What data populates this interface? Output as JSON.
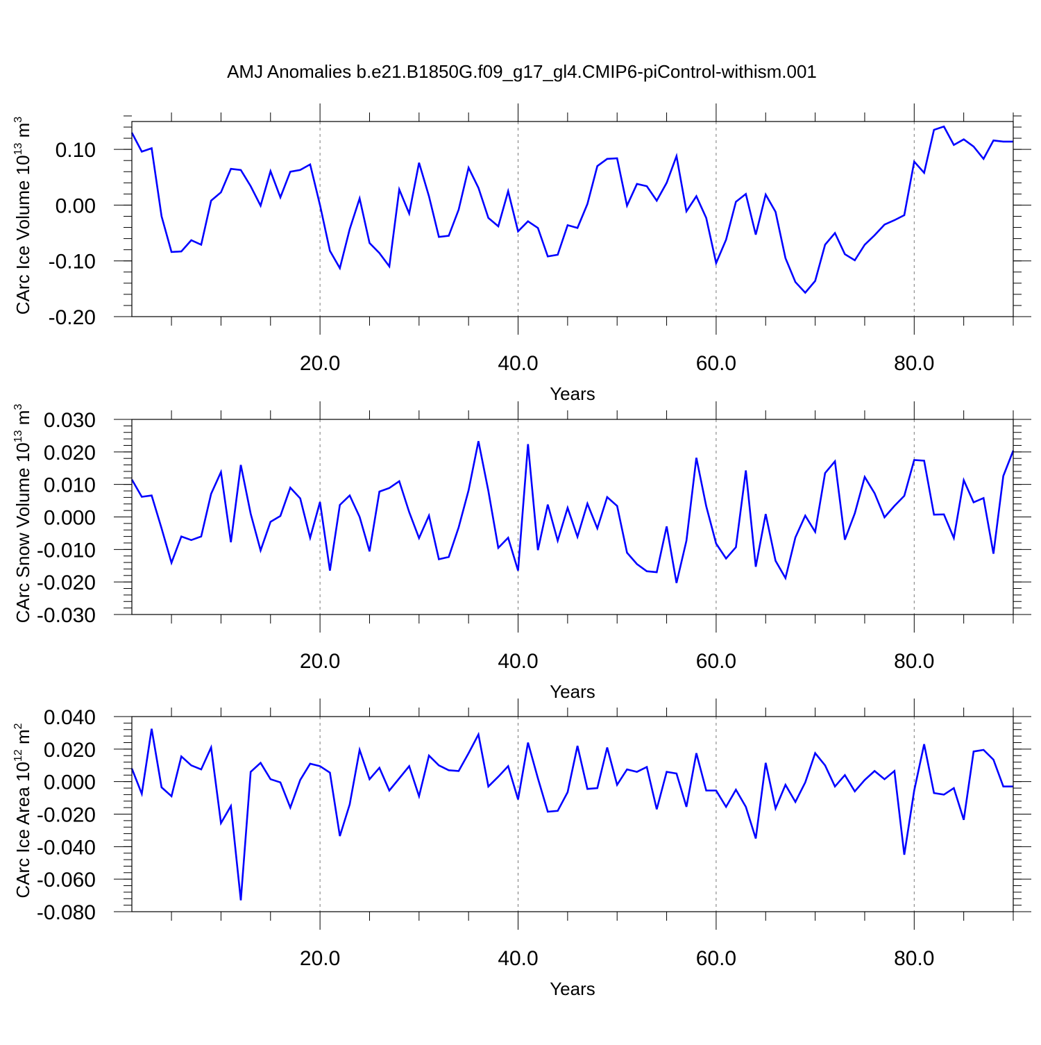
{
  "chart_data": {
    "title": "AMJ Anomalies b.e21.B1850G.f09_g17_gl4.CMIP6-piControl-withism.001",
    "panels": [
      {
        "type": "line",
        "ylabel": "CArc Ice Volume 10",
        "ylabel_exp": "13",
        "ylabel_unit": " m",
        "ylabel_unit_exp": "3",
        "xlabel": "Years",
        "xlim": [
          1,
          90
        ],
        "ylim": [
          -0.2,
          0.15
        ],
        "xticks": [
          20,
          40,
          60,
          80
        ],
        "xtick_labels": [
          "20.0",
          "40.0",
          "60.0",
          "80.0"
        ],
        "yticks": [
          -0.2,
          -0.1,
          0.0,
          0.1
        ],
        "ytick_labels": [
          "-0.20",
          "-0.10",
          "0.00",
          "0.10"
        ],
        "yminor": 0.02,
        "grid_x": true,
        "color": "#0000ff",
        "values": [
          0.13,
          0.096,
          0.102,
          -0.02,
          -0.084,
          -0.083,
          -0.063,
          -0.071,
          0.008,
          0.023,
          0.065,
          0.063,
          0.034,
          -0.001,
          0.061,
          0.014,
          0.06,
          0.063,
          0.073,
          0.0,
          -0.082,
          -0.113,
          -0.043,
          0.012,
          -0.068,
          -0.086,
          -0.11,
          0.028,
          -0.015,
          0.076,
          0.016,
          -0.057,
          -0.055,
          -0.008,
          0.067,
          0.031,
          -0.023,
          -0.038,
          0.025,
          -0.047,
          -0.029,
          -0.041,
          -0.092,
          -0.089,
          -0.036,
          -0.041,
          0.002,
          0.07,
          0.083,
          0.084,
          -0.001,
          0.038,
          0.034,
          0.008,
          0.04,
          0.088,
          -0.011,
          0.016,
          -0.023,
          -0.104,
          -0.062,
          0.006,
          0.02,
          -0.053,
          0.019,
          -0.012,
          -0.095,
          -0.138,
          -0.157,
          -0.136,
          -0.071,
          -0.05,
          -0.088,
          -0.099,
          -0.071,
          -0.054,
          -0.035,
          -0.027,
          -0.018,
          0.078,
          0.058,
          0.135,
          0.141,
          0.108,
          0.118,
          0.105,
          0.083,
          0.116,
          0.114,
          0.114
        ]
      },
      {
        "type": "line",
        "ylabel": "CArc Snow Volume 10",
        "ylabel_exp": "13",
        "ylabel_unit": " m",
        "ylabel_unit_exp": "3",
        "xlabel": "Years",
        "xlim": [
          1,
          90
        ],
        "ylim": [
          -0.03,
          0.03
        ],
        "xticks": [
          20,
          40,
          60,
          80
        ],
        "xtick_labels": [
          "20.0",
          "40.0",
          "60.0",
          "80.0"
        ],
        "yticks": [
          -0.03,
          -0.02,
          -0.01,
          0.0,
          0.01,
          0.02,
          0.03
        ],
        "ytick_labels": [
          "-0.030",
          "-0.020",
          "-0.010",
          "0.000",
          "0.010",
          "0.020",
          "0.030"
        ],
        "yminor": 0.002,
        "grid_x": true,
        "color": "#0000ff",
        "values": [
          0.0115,
          0.0062,
          0.0066,
          -0.0035,
          -0.0141,
          -0.006,
          -0.0071,
          -0.006,
          0.0071,
          0.0138,
          -0.0078,
          0.016,
          0.001,
          -0.0103,
          -0.0015,
          0.0003,
          0.009,
          0.0057,
          -0.0064,
          0.0046,
          -0.0165,
          0.0037,
          0.0066,
          0.0,
          -0.0106,
          0.0078,
          0.0089,
          0.011,
          0.0015,
          -0.0065,
          0.0004,
          -0.013,
          -0.0123,
          -0.0032,
          0.0082,
          0.0233,
          0.008,
          -0.0095,
          -0.0064,
          -0.0165,
          0.0224,
          -0.0102,
          0.0038,
          -0.0073,
          0.0028,
          -0.0061,
          0.0041,
          -0.0035,
          0.0061,
          0.0034,
          -0.011,
          -0.0145,
          -0.0167,
          -0.017,
          -0.0029,
          -0.0203,
          -0.0073,
          0.0182,
          0.0033,
          -0.0082,
          -0.0128,
          -0.0093,
          0.0143,
          -0.0153,
          0.0009,
          -0.0135,
          -0.0188,
          -0.0063,
          0.0004,
          -0.0046,
          0.0135,
          0.0171,
          -0.007,
          0.0011,
          0.0123,
          0.0073,
          -0.0001,
          0.0034,
          0.0065,
          0.0175,
          0.0173,
          0.0007,
          0.0008,
          -0.0065,
          0.0113,
          0.0045,
          0.0058,
          -0.0113,
          0.0126,
          0.0204
        ]
      },
      {
        "type": "line",
        "ylabel": "CArc Ice Area 10",
        "ylabel_exp": "12",
        "ylabel_unit": " m",
        "ylabel_unit_exp": "2",
        "xlabel": "Years",
        "xlim": [
          1,
          90
        ],
        "ylim": [
          -0.08,
          0.04
        ],
        "xticks": [
          20,
          40,
          60,
          80
        ],
        "xtick_labels": [
          "20.0",
          "40.0",
          "60.0",
          "80.0"
        ],
        "yticks": [
          -0.08,
          -0.06,
          -0.04,
          -0.02,
          0.0,
          0.02,
          0.04
        ],
        "ytick_labels": [
          "-0.080",
          "-0.060",
          "-0.040",
          "-0.020",
          "0.000",
          "0.020",
          "0.040"
        ],
        "yminor": 0.004,
        "grid_x": true,
        "color": "#0000ff",
        "values": [
          0.008,
          -0.0075,
          0.0325,
          -0.0035,
          -0.009,
          0.0155,
          0.01,
          0.0075,
          0.021,
          -0.0255,
          -0.015,
          -0.073,
          0.006,
          0.0115,
          0.0015,
          -0.0005,
          -0.016,
          0.001,
          0.011,
          0.0095,
          0.0055,
          -0.0335,
          -0.014,
          0.0195,
          0.0015,
          0.0085,
          -0.0055,
          0.002,
          0.0095,
          -0.009,
          0.016,
          0.01,
          0.007,
          0.0065,
          0.0175,
          0.029,
          -0.003,
          0.003,
          0.0095,
          -0.011,
          0.024,
          0.002,
          -0.0185,
          -0.018,
          -0.0065,
          0.022,
          -0.0045,
          -0.004,
          0.021,
          -0.002,
          0.0075,
          0.006,
          0.009,
          -0.017,
          0.006,
          0.005,
          -0.0155,
          0.0175,
          -0.0055,
          -0.0055,
          -0.0155,
          -0.005,
          -0.0155,
          -0.035,
          0.0115,
          -0.0165,
          -0.002,
          -0.0125,
          -0.0005,
          0.0175,
          0.01,
          -0.003,
          0.004,
          -0.006,
          0.001,
          0.0065,
          0.0015,
          0.0065,
          -0.045,
          -0.0055,
          0.023,
          -0.007,
          -0.008,
          -0.004,
          -0.0235,
          0.0185,
          0.0195,
          0.0135,
          -0.003,
          -0.003
        ]
      }
    ]
  }
}
